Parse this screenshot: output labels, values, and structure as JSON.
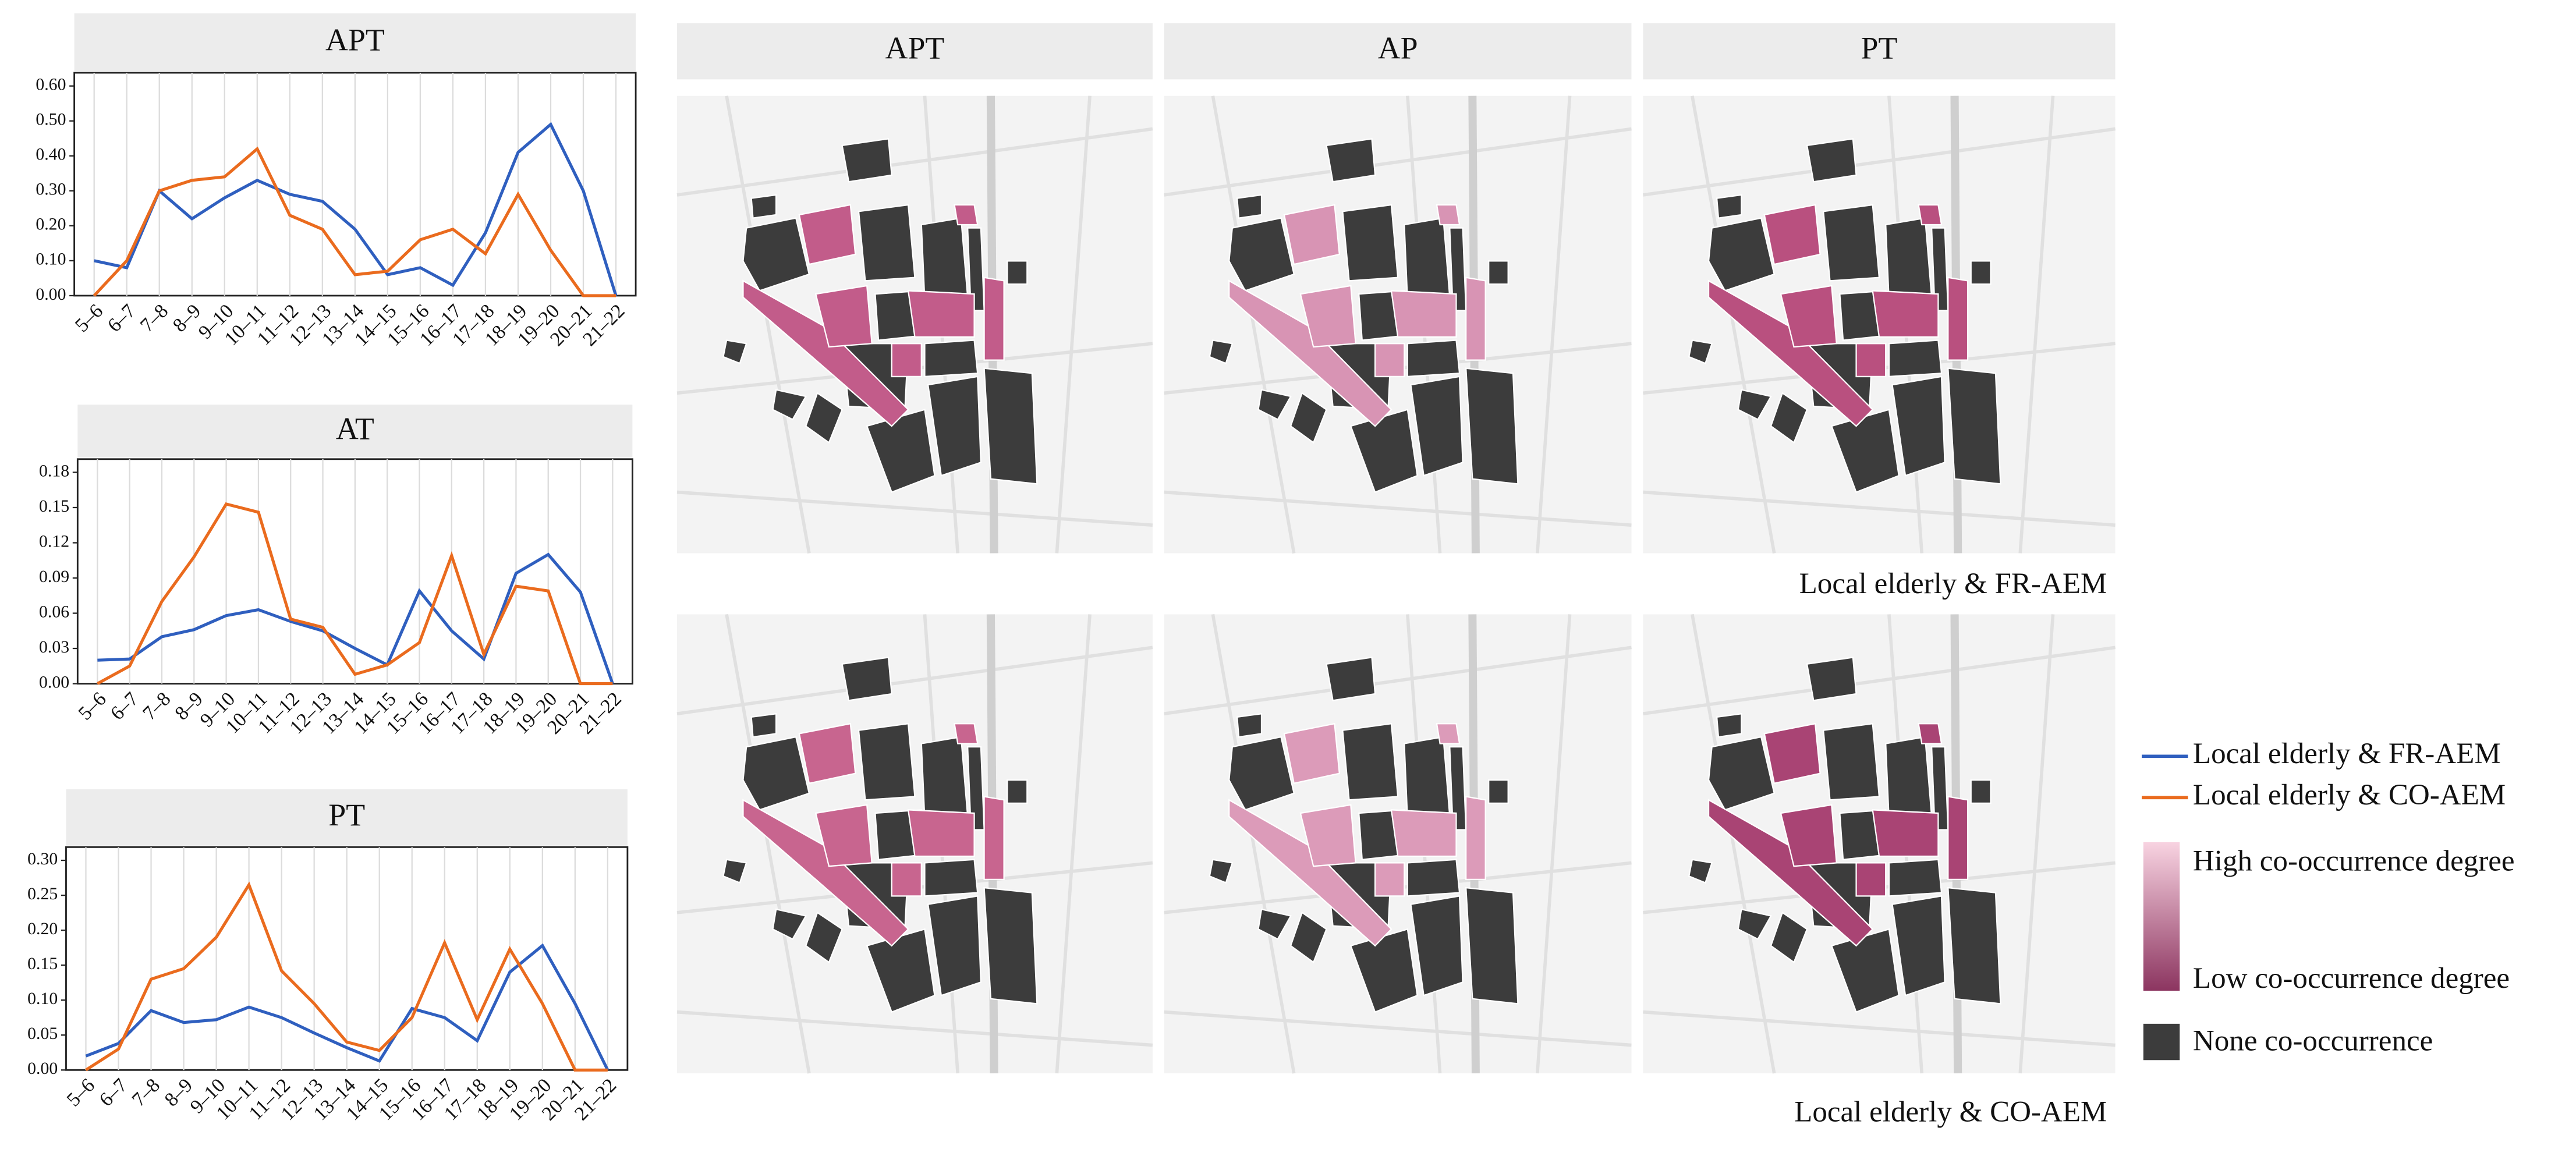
{
  "chart_data": [
    {
      "type": "line",
      "title": "APT",
      "categories": [
        "5–6",
        "6–7",
        "7–8",
        "8–9",
        "9–10",
        "10–11",
        "11–12",
        "12–13",
        "13–14",
        "14–15",
        "15–16",
        "16–17",
        "17–18",
        "18–19",
        "19–20",
        "20–21",
        "21–22"
      ],
      "ylim": [
        0,
        0.6
      ],
      "yticks": [
        {
          "value": 0,
          "label": "0.00"
        },
        {
          "value": 0.1,
          "label": "0.10"
        },
        {
          "value": 0.2,
          "label": "0.20"
        },
        {
          "value": 0.3,
          "label": "0.30"
        },
        {
          "value": 0.4,
          "label": "0.40"
        },
        {
          "value": 0.5,
          "label": "0.50"
        },
        {
          "value": 0.6,
          "label": "0.60"
        }
      ],
      "series": [
        {
          "name": "Local elderly & FR-AEM",
          "color": "#2f5fbf",
          "values": [
            0.1,
            0.08,
            0.3,
            0.22,
            0.28,
            0.33,
            0.29,
            0.27,
            0.19,
            0.06,
            0.08,
            0.03,
            0.18,
            0.41,
            0.49,
            0.3,
            0.0
          ]
        },
        {
          "name": "Local elderly & CO-AEM",
          "color": "#ea6b1e",
          "values": [
            0.0,
            0.1,
            0.3,
            0.33,
            0.34,
            0.42,
            0.23,
            0.19,
            0.06,
            0.07,
            0.16,
            0.19,
            0.12,
            0.29,
            0.13,
            0.0,
            0.0
          ]
        }
      ]
    },
    {
      "type": "line",
      "title": "AT",
      "categories": [
        "5–6",
        "6–7",
        "7–8",
        "8–9",
        "9–10",
        "10–11",
        "11–12",
        "12–13",
        "13–14",
        "14–15",
        "15–16",
        "16–17",
        "17–18",
        "18–19",
        "19–20",
        "20–21",
        "21–22"
      ],
      "ylim": [
        0,
        0.18
      ],
      "yticks": [
        {
          "value": 0,
          "label": "0.00"
        },
        {
          "value": 0.03,
          "label": "0.03"
        },
        {
          "value": 0.06,
          "label": "0.06"
        },
        {
          "value": 0.09,
          "label": "0.09"
        },
        {
          "value": 0.12,
          "label": "0.12"
        },
        {
          "value": 0.15,
          "label": "0.15"
        },
        {
          "value": 0.18,
          "label": "0.18"
        }
      ],
      "series": [
        {
          "color": "#2f5fbf",
          "values": [
            0.02,
            0.021,
            0.04,
            0.046,
            0.058,
            0.063,
            0.053,
            0.045,
            0.03,
            0.016,
            0.079,
            0.045,
            0.021,
            0.094,
            0.11,
            0.078,
            0.0
          ]
        },
        {
          "color": "#ea6b1e",
          "values": [
            0.0,
            0.015,
            0.07,
            0.108,
            0.153,
            0.146,
            0.055,
            0.048,
            0.008,
            0.016,
            0.035,
            0.109,
            0.025,
            0.083,
            0.079,
            0.0,
            0.0
          ]
        }
      ]
    },
    {
      "type": "line",
      "title": "PT",
      "categories": [
        "5–6",
        "6–7",
        "7–8",
        "8–9",
        "9–10",
        "10–11",
        "11–12",
        "12–13",
        "13–14",
        "14–15",
        "15–16",
        "16–17",
        "17–18",
        "18–19",
        "19–20",
        "20–21",
        "21–22"
      ],
      "ylim": [
        0,
        0.3
      ],
      "yticks": [
        {
          "value": 0,
          "label": "0.00"
        },
        {
          "value": 0.05,
          "label": "0.05"
        },
        {
          "value": 0.1,
          "label": "0.10"
        },
        {
          "value": 0.15,
          "label": "0.15"
        },
        {
          "value": 0.2,
          "label": "0.20"
        },
        {
          "value": 0.25,
          "label": "0.25"
        },
        {
          "value": 0.3,
          "label": "0.30"
        }
      ],
      "series": [
        {
          "color": "#2f5fbf",
          "values": [
            0.02,
            0.038,
            0.085,
            0.068,
            0.072,
            0.09,
            0.075,
            0.053,
            0.032,
            0.013,
            0.088,
            0.075,
            0.042,
            0.14,
            0.178,
            0.095,
            0.0
          ]
        },
        {
          "color": "#ea6b1e",
          "values": [
            0.0,
            0.03,
            0.13,
            0.145,
            0.19,
            0.265,
            0.142,
            0.095,
            0.04,
            0.028,
            0.075,
            0.182,
            0.072,
            0.173,
            0.095,
            0.0,
            0.0
          ]
        }
      ]
    }
  ],
  "maps": {
    "titles": [
      "APT",
      "AP",
      "PT"
    ],
    "captions": [
      "Local elderly & FR-AEM",
      "Local elderly & CO-AEM"
    ]
  },
  "legend": {
    "high": "High co-occurrence degree",
    "low": "Low co-occurrence degree",
    "none": "None co-occurrence",
    "gradient_colors": [
      "#f8d3e1",
      "#8c3560"
    ],
    "none_color": "#3c3c3c"
  }
}
